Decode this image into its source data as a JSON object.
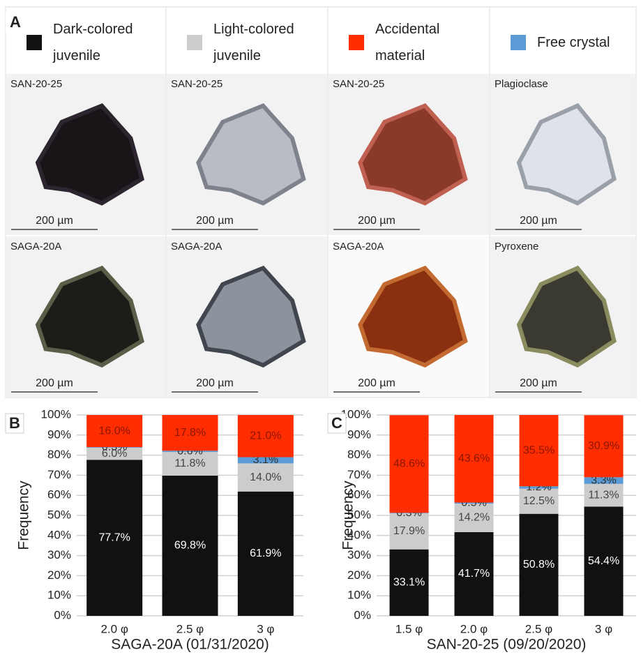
{
  "panel_a": {
    "label": "A",
    "photos": [
      [
        "SAN-20-25",
        "SAN-20-25",
        "SAN-20-25",
        "Plagioclase"
      ],
      [
        "SAGA-20A",
        "SAGA-20A",
        "SAGA-20A",
        "Pyroxene"
      ]
    ],
    "scale_bar": "200 µm"
  },
  "chart_data": [
    {
      "type": "bar",
      "stacked": true,
      "panel": "B",
      "xlabel": "SAGA-20A (01/31/2020)",
      "ylabel": "Frequency",
      "categories": [
        "2.0 φ",
        "2.5 φ",
        "3 φ"
      ],
      "series": [
        {
          "name": "Dark-colored juvenile",
          "color": "#111111",
          "values": [
            77.7,
            69.8,
            61.9
          ],
          "value_labels": [
            "77.7%",
            "69.8%",
            "61.9%"
          ]
        },
        {
          "name": "Light-colored juvenile",
          "color": "#cccccc",
          "values": [
            6.0,
            11.8,
            14.0
          ],
          "value_labels": [
            "6.0%",
            "11.8%",
            "14.0%"
          ]
        },
        {
          "name": "Free crystal",
          "color": "#5b9bd5",
          "values": [
            0.3,
            0.6,
            3.1
          ],
          "value_labels": [
            "0.3%",
            "0.6%",
            "3.1%"
          ]
        },
        {
          "name": "Accidental material",
          "color": "#ff2d00",
          "values": [
            16.0,
            17.8,
            21.0
          ],
          "value_labels": [
            "16.0%",
            "17.8%",
            "21.0%"
          ]
        }
      ],
      "ylim": [
        0,
        100
      ],
      "yticks": [
        {
          "value": 0,
          "label": "0%"
        },
        {
          "value": 10,
          "label": "10%"
        },
        {
          "value": 20,
          "label": "20%"
        },
        {
          "value": 30,
          "label": "30%"
        },
        {
          "value": 40,
          "label": "40%"
        },
        {
          "value": 50,
          "label": "50%"
        },
        {
          "value": 60,
          "label": "60%"
        },
        {
          "value": 70,
          "label": "70%"
        },
        {
          "value": 80,
          "label": "80%"
        },
        {
          "value": 90,
          "label": "90%"
        },
        {
          "value": 100,
          "label": "100%"
        }
      ],
      "grid": true
    },
    {
      "type": "bar",
      "stacked": true,
      "panel": "C",
      "xlabel": "SAN-20-25 (09/20/2020)",
      "ylabel": "Frequency",
      "categories": [
        "1.5 φ",
        "2.0 φ",
        "2.5 φ",
        "3 φ"
      ],
      "series": [
        {
          "color": "#111111",
          "values": [
            33.1,
            41.7,
            50.8,
            54.4
          ],
          "value_labels": [
            "33.1%",
            "41.7%",
            "50.8%",
            "54.4%"
          ]
        },
        {
          "color": "#cccccc",
          "values": [
            17.9,
            14.2,
            12.5,
            11.3
          ],
          "value_labels": [
            "17.9%",
            "14.2%",
            "12.5%",
            "11.3%"
          ]
        },
        {
          "color": "#5b9bd5",
          "values": [
            0.3,
            0.5,
            1.2,
            3.3
          ],
          "value_labels": [
            "0.3%",
            "0.5%",
            "1.2%",
            "3.3%"
          ]
        },
        {
          "color": "#ff2d00",
          "values": [
            48.6,
            43.6,
            35.5,
            30.9
          ],
          "value_labels": [
            "48.6%",
            "43.6%",
            "35.5%",
            "30.9%"
          ]
        }
      ],
      "ylim": [
        0,
        100
      ],
      "yticks": [
        {
          "value": 0,
          "label": "0%"
        },
        {
          "value": 10,
          "label": "10%"
        },
        {
          "value": 20,
          "label": "20%"
        },
        {
          "value": 30,
          "label": "30%"
        },
        {
          "value": 40,
          "label": "40%"
        },
        {
          "value": 50,
          "label": "50%"
        },
        {
          "value": 60,
          "label": "60%"
        },
        {
          "value": 70,
          "label": "70%"
        },
        {
          "value": 80,
          "label": "80%"
        },
        {
          "value": 90,
          "label": "90%"
        },
        {
          "value": 100,
          "label": "100%"
        }
      ],
      "grid": true
    }
  ]
}
